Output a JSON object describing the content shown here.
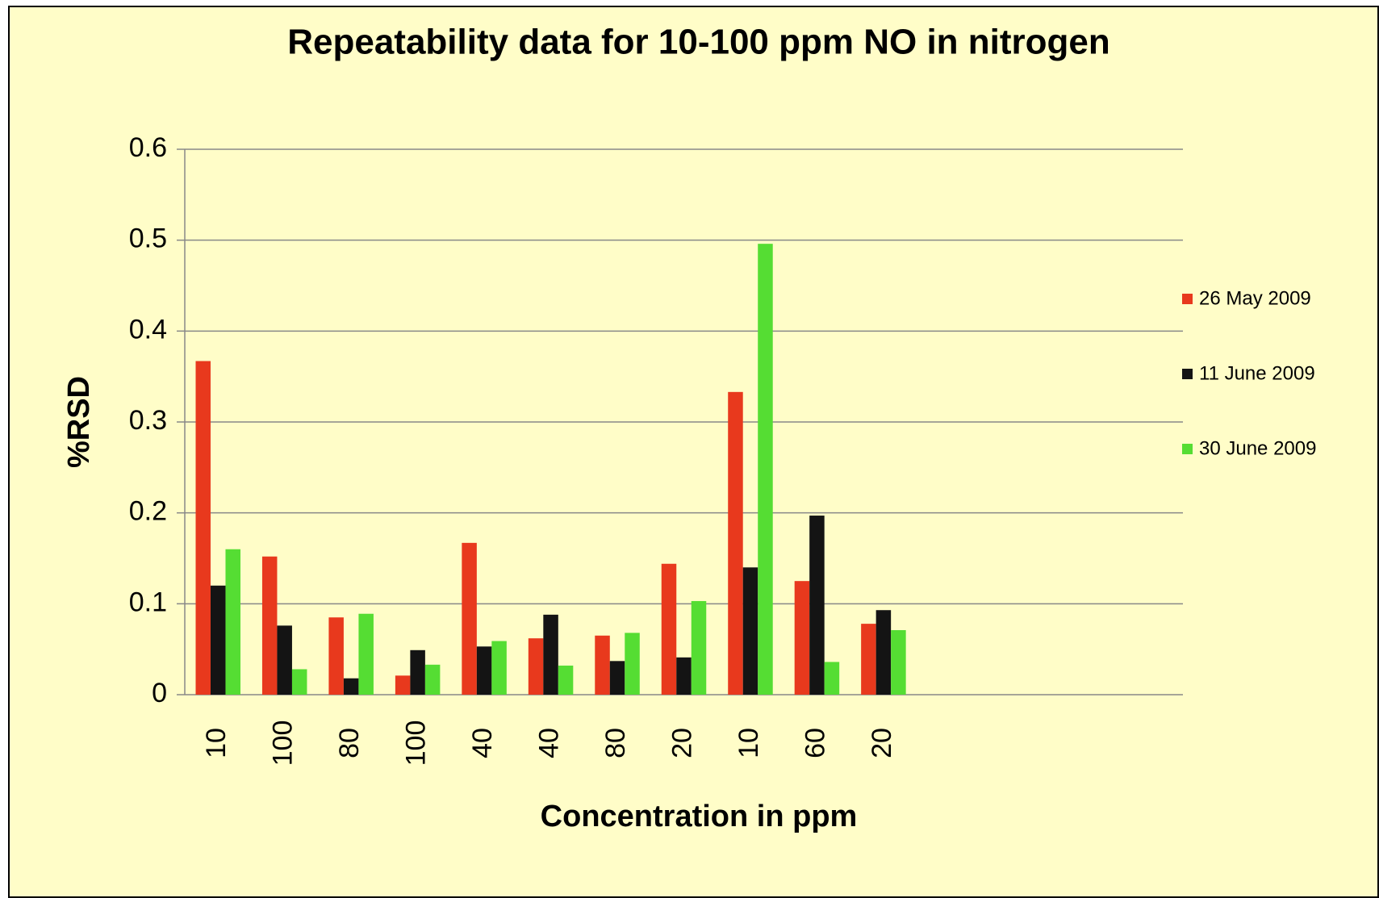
{
  "chart_data": {
    "type": "bar",
    "title": "Repeatability data for 10-100 ppm NO in nitrogen",
    "x_label": "Concentration in ppm",
    "y_label": "%RSD",
    "categories": [
      "10",
      "100",
      "80",
      "100",
      "40",
      "40",
      "80",
      "20",
      "10",
      "60",
      "20",
      null,
      null,
      null,
      null
    ],
    "series": [
      {
        "name": "26 May 2009",
        "color": "#e8391d",
        "values": [
          0.367,
          0.152,
          0.085,
          0.021,
          0.167,
          0.062,
          0.065,
          0.144,
          0.333,
          0.125,
          0.078,
          null,
          null,
          null,
          null
        ]
      },
      {
        "name": "11 June 2009",
        "color": "#141414",
        "values": [
          0.12,
          0.076,
          0.018,
          0.049,
          0.053,
          0.088,
          0.037,
          0.041,
          0.14,
          0.197,
          0.093,
          null,
          null,
          null,
          null
        ]
      },
      {
        "name": "30 June 2009",
        "color": "#55dd33",
        "values": [
          0.16,
          0.028,
          0.089,
          0.033,
          0.059,
          0.032,
          0.068,
          0.103,
          0.496,
          0.036,
          0.071,
          null,
          null,
          null,
          null
        ]
      }
    ],
    "ylim": [
      0,
      0.6
    ],
    "yticks": [
      0,
      0.1,
      0.2,
      0.3,
      0.4,
      0.5,
      0.6
    ],
    "grid": true,
    "legend": "right"
  }
}
